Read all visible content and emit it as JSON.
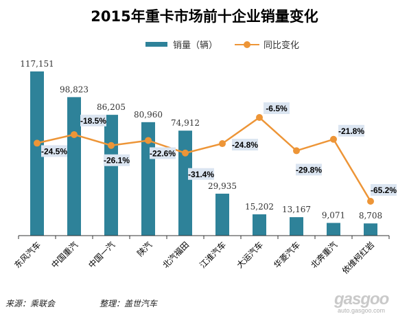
{
  "colors": {
    "bar": "#2e8299",
    "line": "#ed9537",
    "label_box": "#dbe5f1",
    "axis": "#333333"
  },
  "chart_data": {
    "type": "bar+line",
    "title": "2015年重卡市场前十企业销量变化",
    "categories": [
      "东风汽车",
      "中国重汽",
      "中国一汽",
      "陕汽",
      "北汽福田",
      "江淮汽车",
      "大运汽车",
      "华菱汽车",
      "北奔重汽",
      "依维柯红岩"
    ],
    "series": [
      {
        "name": "销量（辆）",
        "type": "bar",
        "values": [
          117151,
          98823,
          86205,
          80960,
          74912,
          29935,
          15202,
          13167,
          9071,
          8708
        ],
        "value_labels": [
          "117,151",
          "98,823",
          "86,205",
          "80,960",
          "74,912",
          "29,935",
          "15,202",
          "13,167",
          "9,071",
          "8,708"
        ]
      },
      {
        "name": "同比变化",
        "type": "line",
        "values": [
          -24.5,
          -18.5,
          -26.1,
          -22.6,
          -31.4,
          -24.8,
          -6.5,
          -29.8,
          -21.8,
          -65.2
        ],
        "value_labels": [
          "-24.5%",
          "-18.5%",
          "-26.1%",
          "-22.6%",
          "-31.4%",
          "-24.8%",
          "-6.5%",
          "-29.8%",
          "-21.8%",
          "-65.2%"
        ]
      }
    ],
    "legend_position": "top-center",
    "grid": false
  },
  "footer": {
    "source": "来源：乘联会",
    "organizer": "整理：盖世汽车",
    "watermark": "gasgoo",
    "watermark_url": "auto.gasgoo.com"
  }
}
